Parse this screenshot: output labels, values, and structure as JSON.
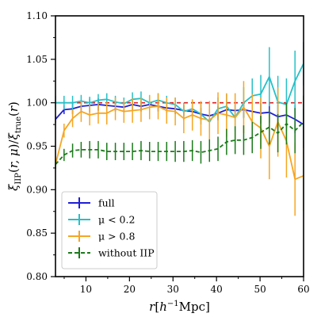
{
  "chart_data": {
    "type": "line",
    "title": "",
    "xlabel": "r[h^-1 Mpc]",
    "ylabel": "ξ_IIP(r, μ)/ξ_true(r)",
    "xlim": [
      3,
      60
    ],
    "ylim": [
      0.8,
      1.1
    ],
    "x_ticks": [
      10,
      20,
      30,
      40,
      50,
      60
    ],
    "y_ticks": [
      0.8,
      0.85,
      0.9,
      0.95,
      1.0,
      1.05,
      1.1
    ],
    "x_tick_labels": [
      "10",
      "20",
      "30",
      "40",
      "50",
      "60"
    ],
    "y_tick_labels": [
      "0.80",
      "0.85",
      "0.90",
      "0.95",
      "1.00",
      "1.05",
      "1.10"
    ],
    "reference_line": {
      "y": 1.0,
      "color": "#e41a1c",
      "style": "dashed"
    },
    "grid": false,
    "legend_position": "lower-left",
    "x": [
      3.0,
      4.97,
      6.93,
      8.9,
      10.86,
      12.83,
      14.79,
      16.76,
      18.72,
      20.69,
      22.66,
      24.62,
      26.59,
      28.55,
      30.52,
      32.48,
      34.45,
      36.41,
      38.38,
      40.34,
      42.31,
      44.28,
      46.24,
      48.21,
      50.17,
      52.14,
      54.1,
      56.07,
      58.03,
      60.0
    ],
    "series": [
      {
        "name": "full",
        "color": "#1f1fd6",
        "style": "solid",
        "y": [
          0.981,
          0.992,
          0.993,
          0.996,
          0.997,
          0.998,
          0.997,
          0.996,
          0.995,
          0.998,
          0.996,
          0.998,
          0.996,
          0.994,
          0.993,
          0.991,
          0.99,
          0.987,
          0.985,
          0.988,
          0.992,
          0.991,
          0.992,
          0.99,
          0.988,
          0.989,
          0.984,
          0.986,
          0.981,
          0.975
        ],
        "err": [
          0.004,
          0.005,
          0.006,
          0.007,
          0.008,
          0.007,
          0.006,
          0.006,
          0.006,
          0.007,
          0.006,
          0.006,
          0.006,
          0.006,
          0.006,
          0.006,
          0.007,
          0.007,
          0.008,
          0.008,
          0.008,
          0.008,
          0.009,
          0.01,
          0.012,
          0.012,
          0.014,
          0.015,
          0.016,
          0.018
        ]
      },
      {
        "name": "μ < 0.2",
        "color": "#27c0c7",
        "style": "solid",
        "y": [
          1.0,
          1.0,
          1.0,
          1.002,
          1.0,
          1.003,
          1.004,
          1.001,
          0.999,
          1.004,
          1.005,
          1.0,
          1.003,
          1.0,
          0.998,
          0.99,
          0.993,
          0.987,
          0.978,
          0.993,
          0.996,
          0.983,
          1.0,
          1.008,
          1.01,
          1.03,
          1.001,
          0.998,
          1.025,
          1.045
        ],
        "err": [
          0.008,
          0.008,
          0.008,
          0.007,
          0.007,
          0.007,
          0.007,
          0.007,
          0.007,
          0.008,
          0.008,
          0.008,
          0.008,
          0.008,
          0.008,
          0.01,
          0.01,
          0.012,
          0.012,
          0.013,
          0.014,
          0.015,
          0.018,
          0.02,
          0.022,
          0.034,
          0.03,
          0.03,
          0.035,
          0.025
        ]
      },
      {
        "name": "μ > 0.8",
        "color": "#f5a623",
        "style": "solid",
        "y": [
          0.929,
          0.968,
          0.982,
          0.99,
          0.986,
          0.988,
          0.988,
          0.993,
          0.99,
          0.991,
          0.992,
          0.995,
          0.996,
          0.991,
          0.99,
          0.982,
          0.986,
          0.982,
          0.98,
          0.988,
          0.986,
          0.983,
          0.995,
          0.978,
          0.971,
          0.95,
          0.978,
          0.956,
          0.912,
          0.916
        ],
        "err": [
          0.005,
          0.008,
          0.01,
          0.012,
          0.012,
          0.012,
          0.013,
          0.013,
          0.013,
          0.014,
          0.014,
          0.014,
          0.015,
          0.015,
          0.016,
          0.017,
          0.018,
          0.02,
          0.022,
          0.024,
          0.025,
          0.028,
          0.03,
          0.032,
          0.035,
          0.038,
          0.04,
          0.042,
          0.042,
          0.04
        ]
      },
      {
        "name": "without IIP",
        "color": "#1a7a1a",
        "style": "dashed",
        "y": [
          0.929,
          0.94,
          0.945,
          0.946,
          0.946,
          0.946,
          0.944,
          0.944,
          0.944,
          0.944,
          0.945,
          0.944,
          0.944,
          0.944,
          0.944,
          0.944,
          0.945,
          0.943,
          0.945,
          0.947,
          0.955,
          0.957,
          0.957,
          0.96,
          0.966,
          0.972,
          0.965,
          0.976,
          0.968,
          0.978
        ],
        "err": [
          0.005,
          0.007,
          0.008,
          0.009,
          0.01,
          0.01,
          0.01,
          0.01,
          0.01,
          0.01,
          0.011,
          0.011,
          0.011,
          0.011,
          0.012,
          0.012,
          0.012,
          0.013,
          0.013,
          0.014,
          0.015,
          0.016,
          0.017,
          0.018,
          0.019,
          0.02,
          0.022,
          0.024,
          0.026,
          0.03
        ]
      }
    ]
  }
}
